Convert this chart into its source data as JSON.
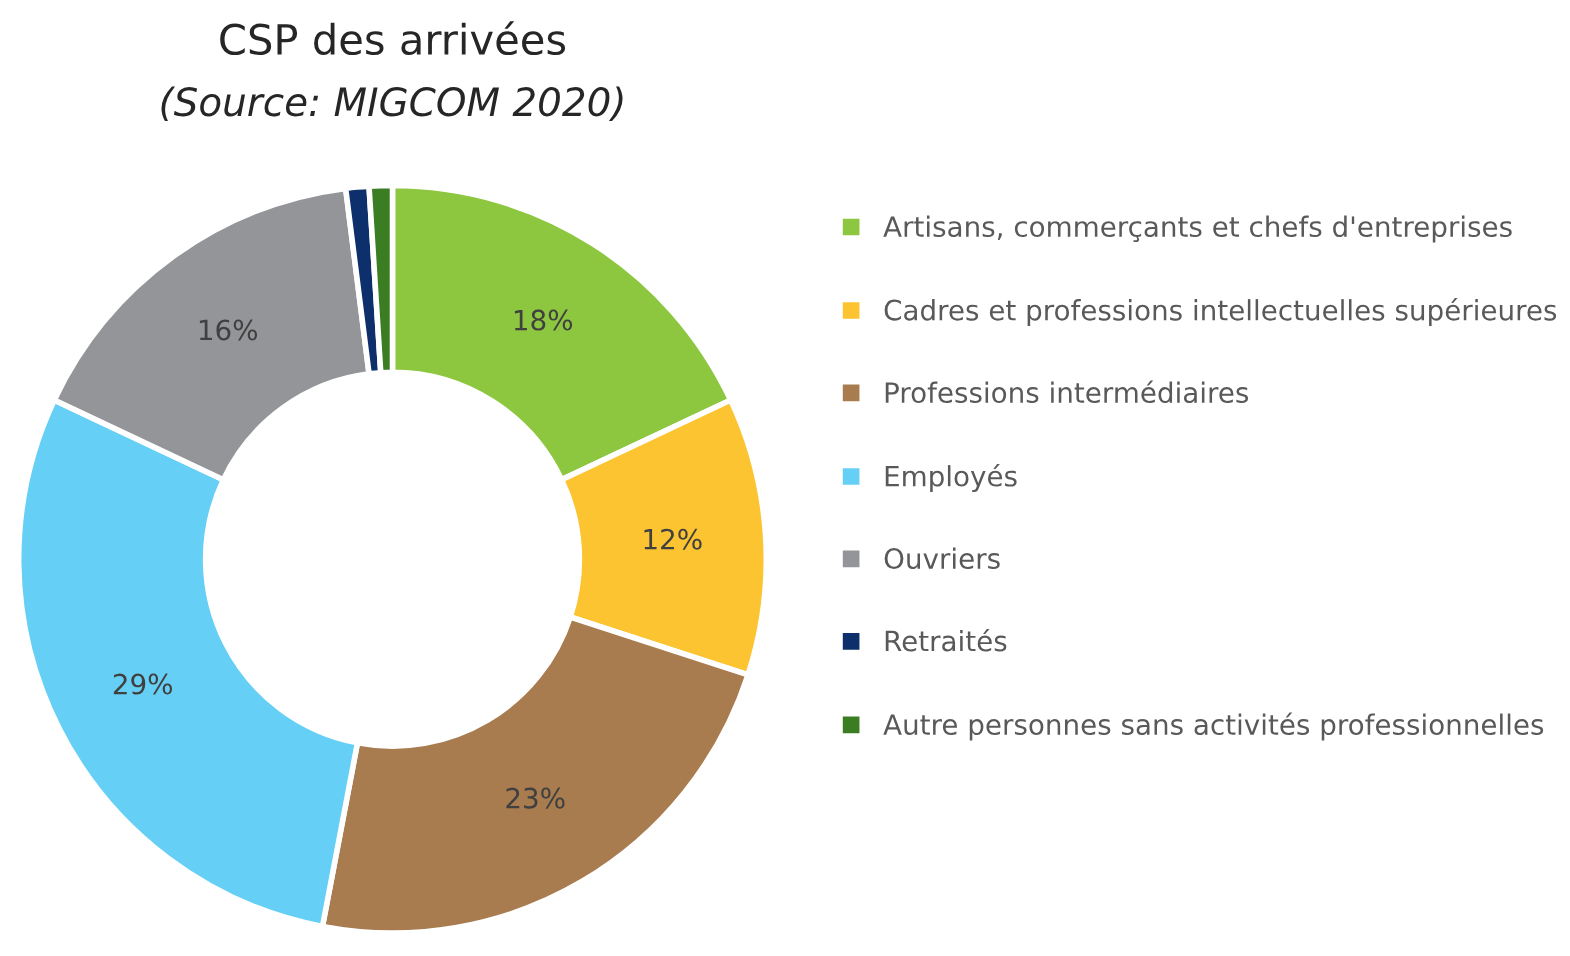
{
  "chart_data": {
    "type": "donut",
    "title": "CSP des arrivées",
    "subtitle": "(Source: MIGCOM 2020)",
    "categories": [
      "Artisans, commerçants et chefs d'entreprises",
      "Cadres et professions intellectuelles supérieures",
      "Professions intermédiaires",
      "Employés",
      "Ouvriers",
      "Retraités",
      "Autre personnes sans activités professionnelles"
    ],
    "values": [
      18,
      12,
      23,
      29,
      16,
      1,
      1
    ],
    "colors": [
      "#8dc63f",
      "#fdc431",
      "#a87c4f",
      "#66cff5",
      "#939598",
      "#0d2f6b",
      "#3a7d22"
    ],
    "value_labels": [
      "18%",
      "12%",
      "23%",
      "29%",
      "16%",
      null,
      null
    ],
    "legend": "right"
  }
}
